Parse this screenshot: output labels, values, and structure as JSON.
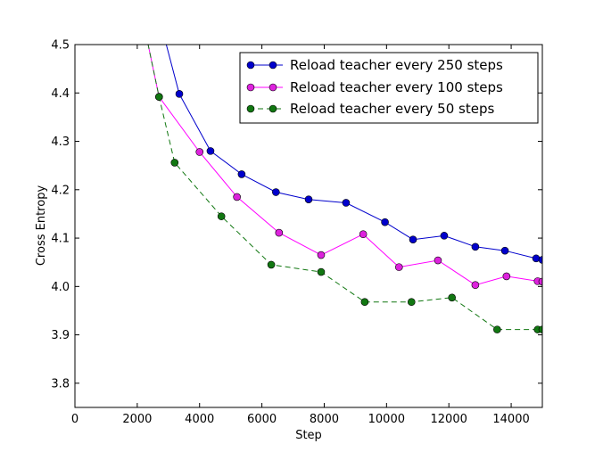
{
  "chart_data": {
    "type": "line",
    "title": "",
    "xlabel": "Step",
    "ylabel": "Cross Entropy",
    "xlim": [
      0,
      15000
    ],
    "ylim": [
      3.75,
      4.5
    ],
    "xticks": [
      0,
      2000,
      4000,
      6000,
      8000,
      10000,
      12000,
      14000
    ],
    "yticks": [
      3.8,
      3.9,
      4.0,
      4.1,
      4.2,
      4.3,
      4.4,
      4.5
    ],
    "xtick_labels": [
      "0",
      "2000",
      "4000",
      "6000",
      "8000",
      "10000",
      "12000",
      "14000"
    ],
    "ytick_labels": [
      "3.8",
      "3.9",
      "4.0",
      "4.1",
      "4.2",
      "4.3",
      "4.4",
      "4.5"
    ],
    "grid": false,
    "legend_position": "top-right",
    "series": [
      {
        "name": "Reload teacher every 250 steps",
        "color": "#0000cc",
        "marker_color": "#0000cc",
        "line_style": "solid",
        "x": [
          1500,
          3350,
          4350,
          5350,
          6450,
          7500,
          8700,
          9950,
          10850,
          11850,
          12850,
          13800,
          14800,
          15000
        ],
        "y": [
          4.85,
          4.398,
          4.28,
          4.232,
          4.195,
          4.18,
          4.173,
          4.133,
          4.097,
          4.105,
          4.082,
          4.074,
          4.058,
          4.055
        ]
      },
      {
        "name": "Reload teacher every 100 steps",
        "color": "#ff00ff",
        "marker_color": "#dd22dd",
        "line_style": "solid",
        "x": [
          1700,
          2700,
          4000,
          5200,
          6550,
          7900,
          9250,
          10400,
          11650,
          12850,
          13850,
          14850,
          15000
        ],
        "y": [
          4.7,
          4.392,
          4.278,
          4.185,
          4.111,
          4.065,
          4.108,
          4.04,
          4.054,
          4.003,
          4.021,
          4.011,
          4.01
        ]
      },
      {
        "name": "Reload teacher every 50 steps",
        "color": "#117711",
        "marker_color": "#117711",
        "line_style": "dashed",
        "x": [
          1700,
          2700,
          3200,
          4700,
          6300,
          7900,
          9300,
          10800,
          12100,
          13550,
          14850,
          15000
        ],
        "y": [
          4.7,
          4.392,
          4.256,
          4.145,
          4.045,
          4.03,
          3.968,
          3.968,
          3.977,
          3.911,
          3.911,
          3.911
        ]
      }
    ]
  }
}
